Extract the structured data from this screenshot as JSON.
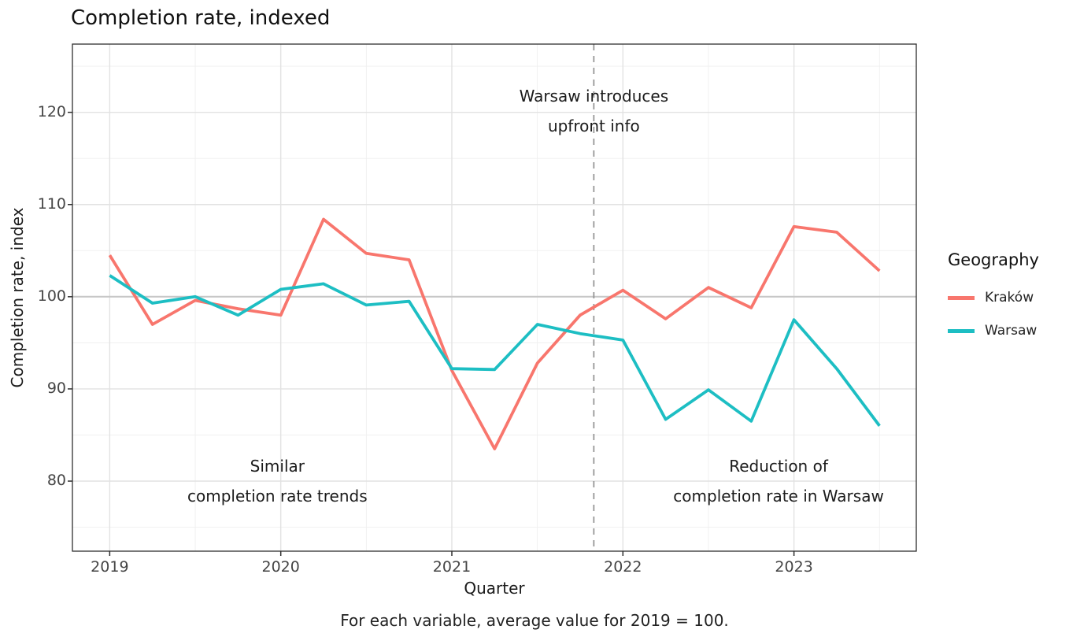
{
  "chart_data": {
    "type": "line",
    "title": "Completion rate, indexed",
    "xlabel": "Quarter",
    "ylabel": "Completion rate, index",
    "caption": "For each variable, average value for 2019 = 100.",
    "quarters": [
      "2019 Q1",
      "2019 Q2",
      "2019 Q3",
      "2019 Q4",
      "2020 Q1",
      "2020 Q2",
      "2020 Q3",
      "2020 Q4",
      "2021 Q1",
      "2021 Q2",
      "2021 Q3",
      "2021 Q4",
      "2022 Q1",
      "2022 Q2",
      "2022 Q3",
      "2022 Q4",
      "2023 Q1",
      "2023 Q2",
      "2023 Q3"
    ],
    "x": [
      2019.0,
      2019.25,
      2019.5,
      2019.75,
      2020.0,
      2020.25,
      2020.5,
      2020.75,
      2021.0,
      2021.25,
      2021.5,
      2021.75,
      2022.0,
      2022.25,
      2022.5,
      2022.75,
      2023.0,
      2023.25,
      2023.5
    ],
    "series": [
      {
        "name": "Kraków",
        "color": "#f8766d",
        "values": [
          104.5,
          97.0,
          99.6,
          98.7,
          98.0,
          108.4,
          104.7,
          104.0,
          92.0,
          83.5,
          92.8,
          98.0,
          100.7,
          97.6,
          101.0,
          98.8,
          107.6,
          107.0,
          102.8
        ]
      },
      {
        "name": "Warsaw",
        "color": "#1dbec3",
        "values": [
          102.3,
          99.3,
          100.0,
          98.0,
          100.8,
          101.4,
          99.1,
          99.5,
          92.2,
          92.1,
          97.0,
          96.0,
          95.3,
          86.7,
          89.9,
          86.5,
          97.5,
          92.2,
          86.0
        ]
      }
    ],
    "xaxis": {
      "min": 2018.782,
      "max": 2023.715,
      "major_ticks": [
        2019,
        2020,
        2021,
        2022,
        2023
      ],
      "tick_labels": [
        "2019",
        "2020",
        "2021",
        "2022",
        "2023"
      ],
      "minor_ticks": [
        2019.5,
        2020.5,
        2021.5,
        2022.5,
        2023.5
      ]
    },
    "yaxis": {
      "min": 72.4,
      "max": 127.4,
      "major_ticks": [
        80,
        90,
        100,
        110,
        120
      ],
      "tick_labels": [
        "80",
        "90",
        "100",
        "110",
        "120"
      ],
      "minor_ticks": [
        75,
        85,
        95,
        105,
        115,
        125
      ]
    },
    "reference_line": {
      "y": 100,
      "color": "#c8c8c8"
    },
    "event_line": {
      "x": 2021.83,
      "style": "dashed",
      "color": "#919191"
    },
    "annotations": [
      {
        "id": "warsaw-introduces",
        "x": 2021.83,
        "y": 120.1,
        "lines": [
          "Warsaw introduces",
          "upfront info"
        ]
      },
      {
        "id": "similar-trends",
        "x": 2019.98,
        "y": 80.0,
        "lines": [
          "Similar",
          "completion rate trends"
        ]
      },
      {
        "id": "reduction-warsaw",
        "x": 2022.91,
        "y": 80.0,
        "lines": [
          "Reduction of",
          "completion rate in Warsaw"
        ]
      }
    ],
    "legend": {
      "title": "Geography",
      "position": "right",
      "items": [
        {
          "label": "Kraków",
          "color": "#f8766d"
        },
        {
          "label": "Warsaw",
          "color": "#1dbec3"
        }
      ]
    },
    "grid": true,
    "layout_hints": {
      "grid_on": true,
      "legend_right": true,
      "panel_border": true
    }
  }
}
